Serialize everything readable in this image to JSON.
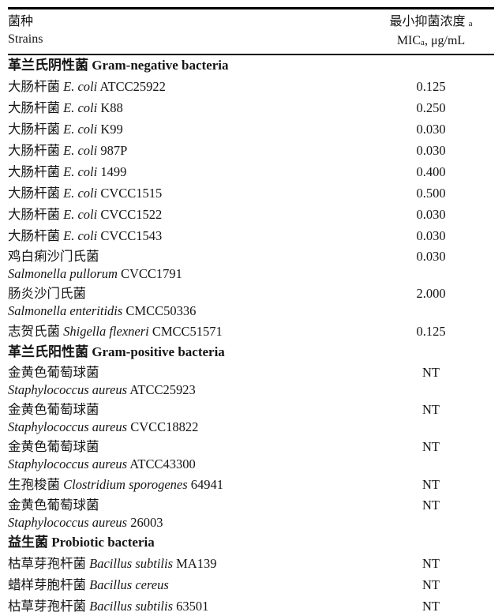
{
  "page": {
    "background": "#ffffff",
    "text_color": "#141414",
    "rule_color": "#000000"
  },
  "table": {
    "header": {
      "strains_cn": "菌种",
      "strains_en": "Strains",
      "mic_cn": "最小抑菌浓度",
      "mic_cn_note": "a",
      "mic_abbr": "MIC",
      "mic_abbr_note": "a",
      "mic_unit": ", μg/mL"
    },
    "rows": [
      {
        "type": "section",
        "label": "革兰氏阴性菌 Gram-negative bacteria"
      },
      {
        "type": "single",
        "cn": "大肠杆菌",
        "latin": "E. coli",
        "code": "ATCC25922",
        "value": "0.125"
      },
      {
        "type": "single",
        "cn": "大肠杆菌",
        "latin": "E. coli",
        "code": "K88",
        "value": "0.250"
      },
      {
        "type": "single",
        "cn": "大肠杆菌",
        "latin": "E. coli",
        "code": "K99",
        "value": "0.030"
      },
      {
        "type": "single",
        "cn": "大肠杆菌",
        "latin": "E. coli",
        "code": "987P",
        "value": "0.030"
      },
      {
        "type": "single",
        "cn": "大肠杆菌",
        "latin": "E. coli",
        "code": "1499",
        "value": "0.400"
      },
      {
        "type": "single",
        "cn": "大肠杆菌",
        "latin": "E. coli",
        "code": "CVCC1515",
        "value": "0.500"
      },
      {
        "type": "single",
        "cn": "大肠杆菌",
        "latin": "E. coli",
        "code": "CVCC1522",
        "value": "0.030"
      },
      {
        "type": "single",
        "cn": "大肠杆菌",
        "latin": "E. coli",
        "code": "CVCC1543",
        "value": "0.030"
      },
      {
        "type": "double",
        "cn": "鸡白痢沙门氏菌",
        "latin": "Salmonella pullorum",
        "code": "CVCC1791",
        "value": "0.030"
      },
      {
        "type": "double",
        "cn": "肠炎沙门氏菌",
        "latin": "Salmonella enteritidis",
        "code": "CMCC50336",
        "value": "2.000"
      },
      {
        "type": "single",
        "cn": "志贺氏菌",
        "latin": "Shigella flexneri",
        "code": "CMCC51571",
        "value": "0.125"
      },
      {
        "type": "section",
        "label": "革兰氏阳性菌 Gram-positive bacteria"
      },
      {
        "type": "double",
        "cn": "金黄色葡萄球菌",
        "latin": "Staphylococcus aureus",
        "code": "ATCC25923",
        "value": "NT"
      },
      {
        "type": "double",
        "cn": "金黄色葡萄球菌",
        "latin": "Staphylococcus aureus",
        "code": "CVCC18822",
        "value": "NT"
      },
      {
        "type": "double",
        "cn": "金黄色葡萄球菌",
        "latin": "Staphylococcus aureus",
        "code": "ATCC43300",
        "value": "NT"
      },
      {
        "type": "single",
        "cn": "生孢梭菌",
        "latin": "Clostridium sporogenes",
        "code": "64941",
        "value": "NT"
      },
      {
        "type": "double",
        "cn": "金黄色葡萄球菌",
        "latin": "Staphylococcus aureus",
        "code": "26003",
        "value": "NT"
      },
      {
        "type": "section",
        "label": "益生菌 Probiotic bacteria"
      },
      {
        "type": "single",
        "cn": "枯草芽孢杆菌",
        "latin": "Bacillus subtilis",
        "code": "MA139",
        "value": "NT"
      },
      {
        "type": "single",
        "cn": "蜡样芽胞杆菌",
        "latin": "Bacillus cereus",
        "code": "",
        "value": "NT"
      },
      {
        "type": "single",
        "cn": "枯草芽孢杆菌",
        "latin": "Bacillus subtilis",
        "code": "63501",
        "value": "NT"
      }
    ]
  }
}
